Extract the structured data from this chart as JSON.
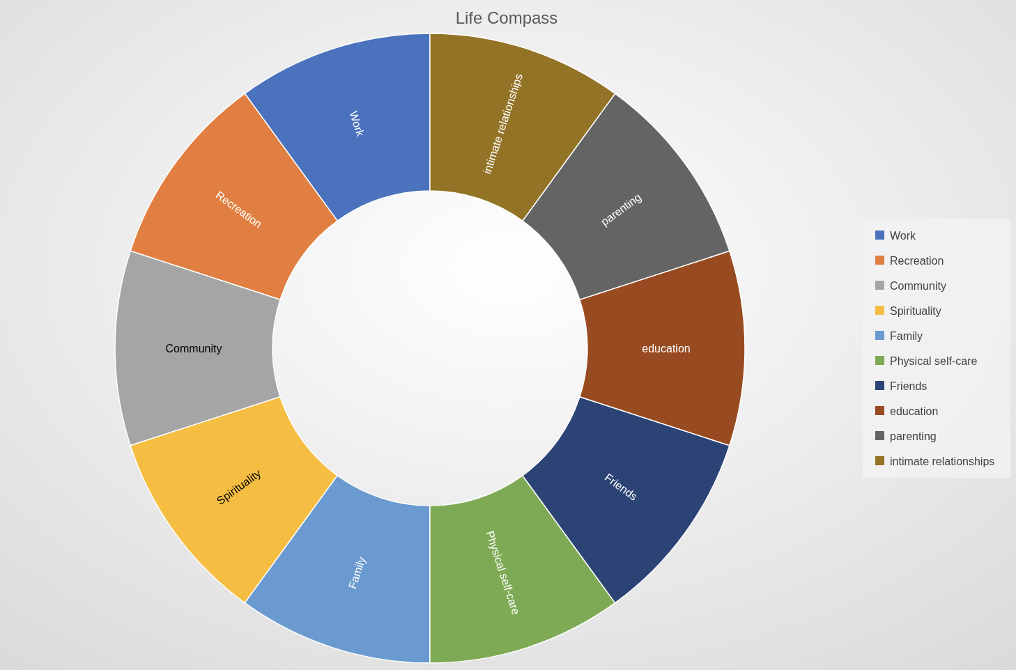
{
  "chart_data": {
    "type": "donut",
    "title": "Life Compass",
    "categories": [
      "Work",
      "Recreation",
      "Community",
      "Spirituality",
      "Family",
      "Physical self-care",
      "Friends",
      "education",
      "parenting",
      "intimate relationships"
    ],
    "values": [
      10,
      10,
      10,
      10,
      10,
      10,
      10,
      10,
      10,
      10
    ],
    "colors": [
      "#4a72bd",
      "#e07f41",
      "#a5a5a5",
      "#f5be42",
      "#6a9acf",
      "#7faa55",
      "#2c4475",
      "#984b21",
      "#646464",
      "#937325"
    ],
    "legend": "right"
  }
}
